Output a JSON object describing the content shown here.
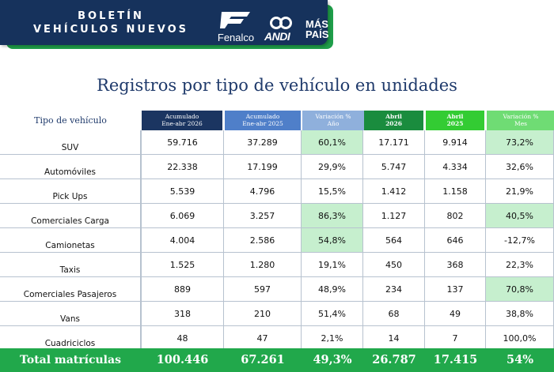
{
  "header": {
    "title_line1": "BOLETÍN",
    "title_line2": "VEHÍCULOS NUEVOS",
    "logos": {
      "fenalco": "Fenalco",
      "andi": "ANDI",
      "maspais_line1": "MÁS",
      "maspais_line2": "PAÍS"
    }
  },
  "main_title": "Registros por tipo de vehículo en unidades",
  "table": {
    "row_header_label": "Tipo de vehículo",
    "columns": [
      {
        "line1": "Acumulado",
        "line2": "Ene-abr 2026",
        "color": "#1b3561",
        "bold": false
      },
      {
        "line1": "Acumulado",
        "line2": "Ene-abr 2025",
        "color": "#4f7fc9",
        "bold": false
      },
      {
        "line1": "Variación %",
        "line2": "Año",
        "color": "#8fb0dc",
        "bold": false
      },
      {
        "line1": "Abril",
        "line2": "2026",
        "color": "#1a8c3e",
        "bold": true
      },
      {
        "line1": "Abril",
        "line2": "2025",
        "color": "#33cc33",
        "bold": true
      },
      {
        "line1": "Variación %",
        "line2": "Mes",
        "color": "#6fdc74",
        "bold": false
      }
    ],
    "rows": [
      {
        "label": "SUV",
        "values": [
          "59.716",
          "37.289",
          "60,1%",
          "17.171",
          "9.914",
          "73,2%"
        ],
        "highlight": [
          false,
          false,
          true,
          false,
          false,
          true
        ]
      },
      {
        "label": "Automóviles",
        "values": [
          "22.338",
          "17.199",
          "29,9%",
          "5.747",
          "4.334",
          "32,6%"
        ],
        "highlight": [
          false,
          false,
          false,
          false,
          false,
          false
        ]
      },
      {
        "label": "Pick Ups",
        "values": [
          "5.539",
          "4.796",
          "15,5%",
          "1.412",
          "1.158",
          "21,9%"
        ],
        "highlight": [
          false,
          false,
          false,
          false,
          false,
          false
        ]
      },
      {
        "label": "Comerciales Carga",
        "values": [
          "6.069",
          "3.257",
          "86,3%",
          "1.127",
          "802",
          "40,5%"
        ],
        "highlight": [
          false,
          false,
          true,
          false,
          false,
          true
        ]
      },
      {
        "label": "Camionetas",
        "values": [
          "4.004",
          "2.586",
          "54,8%",
          "564",
          "646",
          "-12,7%"
        ],
        "highlight": [
          false,
          false,
          true,
          false,
          false,
          false
        ]
      },
      {
        "label": "Taxis",
        "values": [
          "1.525",
          "1.280",
          "19,1%",
          "450",
          "368",
          "22,3%"
        ],
        "highlight": [
          false,
          false,
          false,
          false,
          false,
          false
        ]
      },
      {
        "label": "Comerciales Pasajeros",
        "values": [
          "889",
          "597",
          "48,9%",
          "234",
          "137",
          "70,8%"
        ],
        "highlight": [
          false,
          false,
          false,
          false,
          false,
          true
        ]
      },
      {
        "label": "Vans",
        "values": [
          "318",
          "210",
          "51,4%",
          "68",
          "49",
          "38,8%"
        ],
        "highlight": [
          false,
          false,
          false,
          false,
          false,
          false
        ]
      },
      {
        "label": "Cuadriciclos",
        "values": [
          "48",
          "47",
          "2,1%",
          "14",
          "7",
          "100,0%"
        ],
        "highlight": [
          false,
          false,
          false,
          false,
          false,
          false
        ]
      }
    ],
    "total": {
      "label": "Total matrículas",
      "values": [
        "100.446",
        "67.261",
        "49,3%",
        "26.787",
        "17.415",
        "54%"
      ]
    }
  }
}
